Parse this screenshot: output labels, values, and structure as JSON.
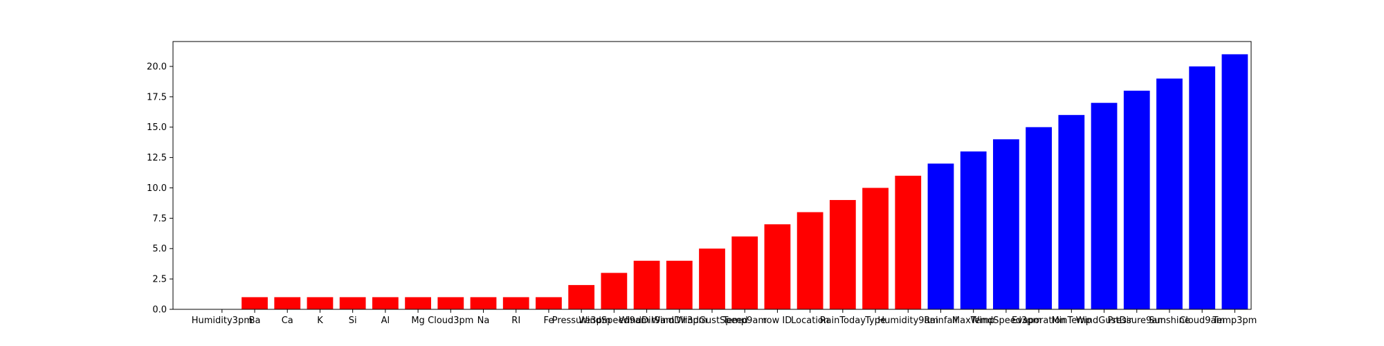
{
  "chart_data": {
    "type": "bar",
    "title": "",
    "xlabel": "",
    "ylabel": "",
    "ylim": [
      0,
      22.05
    ],
    "yticks": [
      0.0,
      2.5,
      5.0,
      7.5,
      10.0,
      12.5,
      15.0,
      17.5,
      20.0
    ],
    "ytick_labels": [
      "0.0",
      "2.5",
      "5.0",
      "7.5",
      "10.0",
      "12.5",
      "15.0",
      "17.5",
      "20.0"
    ],
    "grid": false,
    "legend": "none",
    "categories": [
      "Humidity3pm",
      "Ba",
      "Ca",
      "K",
      "Si",
      "Al",
      "Mg",
      "Cloud3pm",
      "Na",
      "RI",
      "Fe",
      "Pressure3pm",
      "WindSpeed9am",
      "WindDir9am",
      "WindDir3pm",
      "WindGustSpeed",
      "Temp9am",
      "row ID",
      "Location",
      "RainToday",
      "Type",
      "Humidity9am",
      "Rainfall",
      "MaxTemp",
      "WindSpeed3pm",
      "Evaporation",
      "MinTemp",
      "WindGustDir",
      "Pressure9am",
      "Sunshine",
      "Cloud9am",
      "Temp3pm"
    ],
    "values": [
      0,
      1,
      1,
      1,
      1,
      1,
      1,
      1,
      1,
      1,
      1,
      2,
      3,
      4,
      4,
      5,
      6,
      7,
      8,
      9,
      10,
      11,
      12,
      13,
      14,
      15,
      16,
      17,
      18,
      19,
      20,
      21
    ],
    "bar_colors": [
      "#ff0000",
      "#ff0000",
      "#ff0000",
      "#ff0000",
      "#ff0000",
      "#ff0000",
      "#ff0000",
      "#ff0000",
      "#ff0000",
      "#ff0000",
      "#ff0000",
      "#ff0000",
      "#ff0000",
      "#ff0000",
      "#ff0000",
      "#ff0000",
      "#ff0000",
      "#ff0000",
      "#ff0000",
      "#ff0000",
      "#ff0000",
      "#ff0000",
      "#0000ff",
      "#0000ff",
      "#0000ff",
      "#0000ff",
      "#0000ff",
      "#0000ff",
      "#0000ff",
      "#0000ff",
      "#0000ff",
      "#0000ff"
    ]
  }
}
